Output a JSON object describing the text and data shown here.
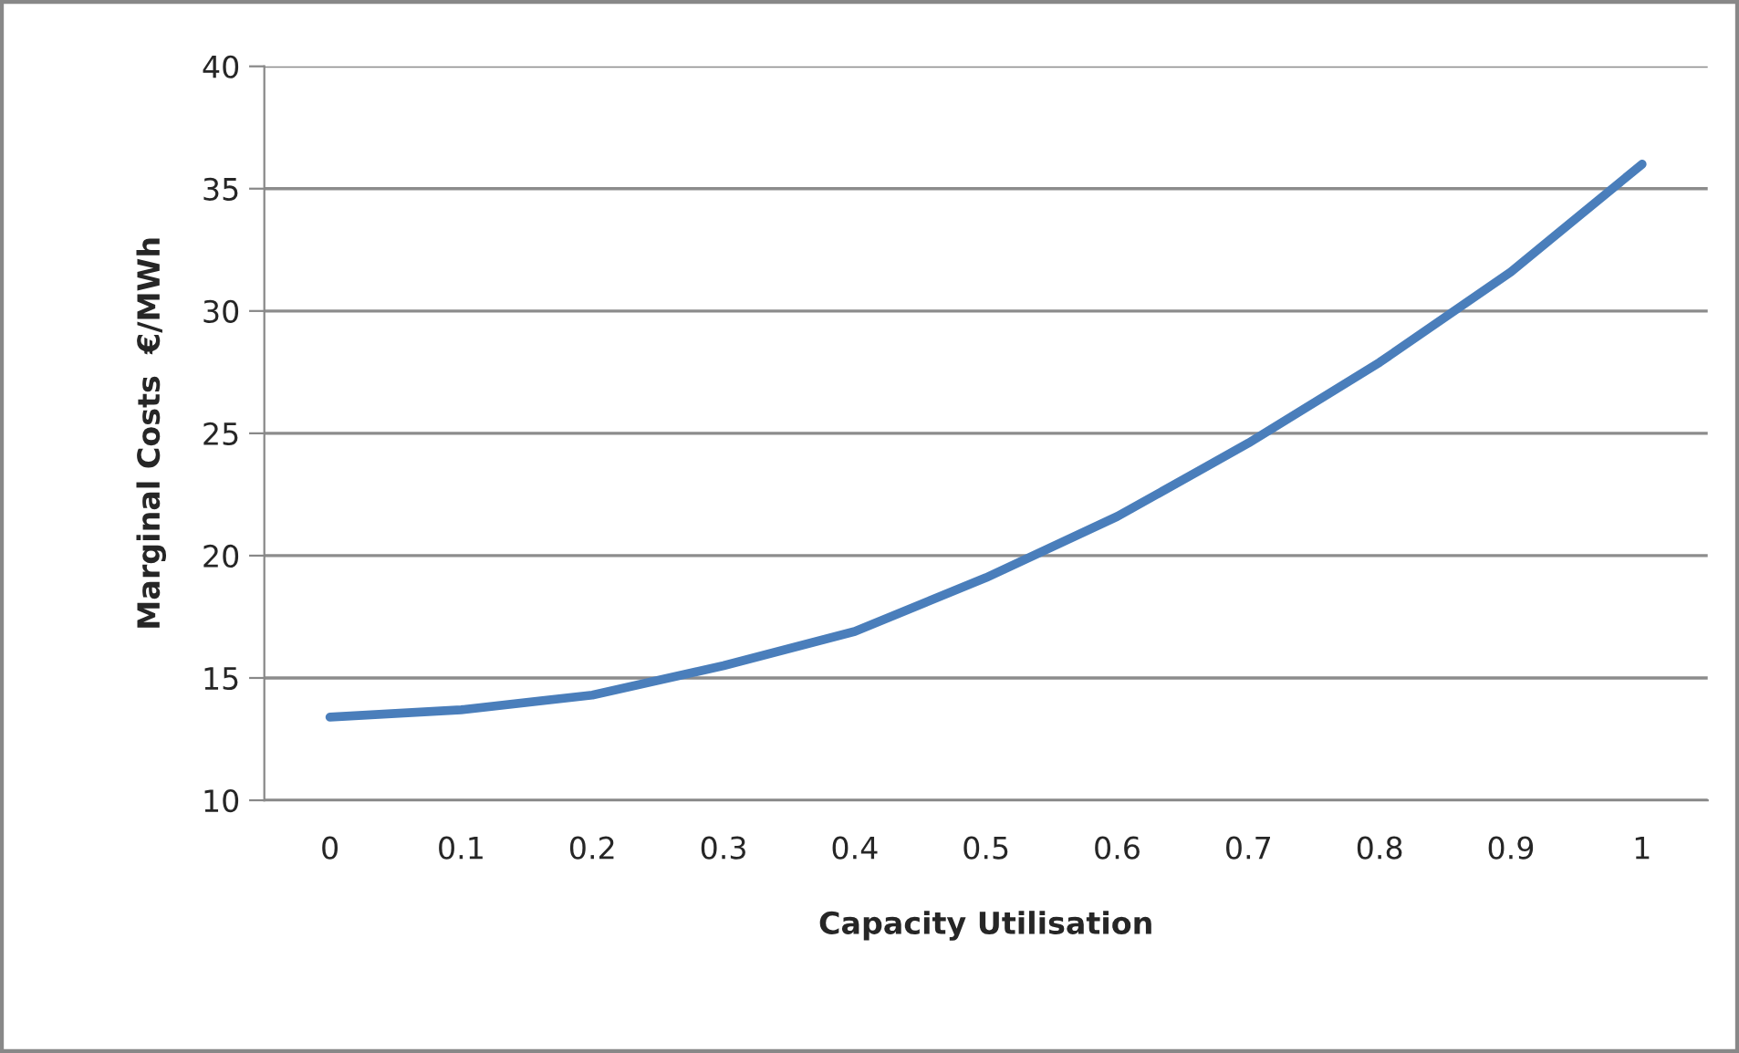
{
  "chart_data": {
    "type": "line",
    "xlabel": "Capacity Utilisation",
    "ylabel": "Marginal Costs  €/MWh",
    "categories": [
      "0",
      "0.1",
      "0.2",
      "0.3",
      "0.4",
      "0.5",
      "0.6",
      "0.7",
      "0.8",
      "0.9",
      "1"
    ],
    "series": [
      {
        "color": "#4a7ebb",
        "values": [
          13.4,
          13.7,
          14.3,
          15.5,
          16.9,
          19.1,
          21.6,
          24.6,
          27.9,
          31.6,
          36.0
        ]
      }
    ],
    "ylim": [
      10,
      40
    ],
    "yticks": [
      10,
      15,
      20,
      25,
      30,
      35,
      40
    ],
    "grid": "y",
    "marker": "none",
    "line_style": "solid"
  }
}
